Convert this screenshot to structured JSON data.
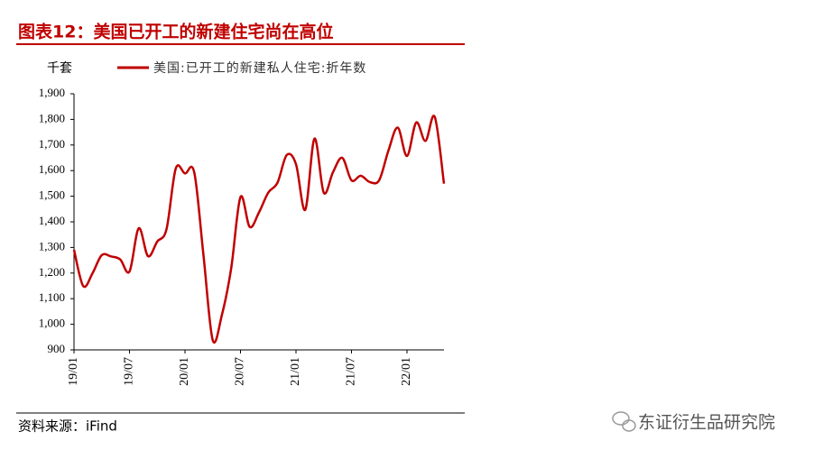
{
  "chart_data": {
    "type": "line",
    "title": "图表12：美国已开工的新建住宅尚在高位",
    "y_label": "千套",
    "source": "资料来源：iFind",
    "watermark": "东证衍生品研究院",
    "categories": [
      "19/01",
      null,
      null,
      null,
      null,
      null,
      "19/07",
      null,
      null,
      null,
      null,
      null,
      "20/01",
      null,
      null,
      null,
      null,
      null,
      "20/07",
      null,
      null,
      null,
      null,
      null,
      "21/01",
      null,
      null,
      null,
      null,
      null,
      "21/07",
      null,
      null,
      null,
      null,
      null,
      "22/01",
      null,
      null,
      null,
      null
    ],
    "series": [
      {
        "name": "美国:已开工的新建私人住宅:折年数",
        "color": "#c00000",
        "values": [
          1291,
          1149,
          1199,
          1270,
          1265,
          1253,
          1206,
          1375,
          1266,
          1323,
          1371,
          1608,
          1589,
          1593,
          1269,
          938,
          1038,
          1220,
          1497,
          1380,
          1437,
          1514,
          1553,
          1661,
          1625,
          1447,
          1725,
          1514,
          1594,
          1650,
          1562,
          1580,
          1555,
          1563,
          1679,
          1768,
          1657,
          1788,
          1716,
          1810,
          1549
        ]
      }
    ],
    "ylim": [
      900,
      1900
    ],
    "yticks": [
      900,
      {
        "value": 1000,
        "label": "1,000"
      },
      {
        "value": 1100,
        "label": "1,100"
      },
      {
        "value": 1200,
        "label": "1,200"
      },
      {
        "value": 1300,
        "label": "1,300"
      },
      {
        "value": 1400,
        "label": "1,400"
      },
      {
        "value": 1500,
        "label": "1,500"
      },
      {
        "value": 1600,
        "label": "1,600"
      },
      {
        "value": 1700,
        "label": "1,700"
      },
      {
        "value": 1800,
        "label": "1,800"
      },
      {
        "value": 1900,
        "label": "1,900"
      }
    ],
    "grid": false
  }
}
